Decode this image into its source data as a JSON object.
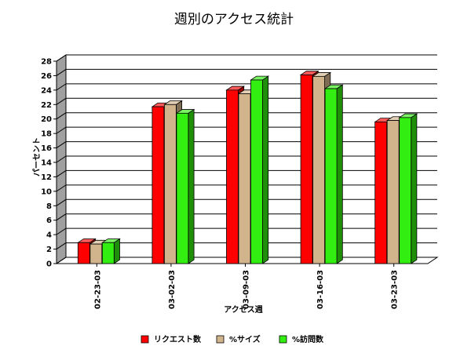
{
  "chart_data": {
    "type": "bar",
    "title": "週別のアクセス統計",
    "xlabel": "アクセス週",
    "ylabel": "パーセント",
    "categories": [
      "02-23-03",
      "03-02-03",
      "03-09-03",
      "03-16-03",
      "03-23-03"
    ],
    "series": [
      {
        "name": "リクエスト数",
        "values": [
          2.9,
          21.7,
          24.0,
          26.1,
          19.6
        ],
        "color": "#ff0000"
      },
      {
        "name": "%サイズ",
        "values": [
          2.7,
          22.0,
          23.5,
          25.9,
          19.8
        ],
        "color": "#d2b48c"
      },
      {
        "name": "%訪問数",
        "values": [
          2.9,
          20.8,
          25.4,
          24.2,
          20.2
        ],
        "color": "#33ee11"
      }
    ],
    "ylim": [
      0,
      28
    ],
    "yticks": [
      0,
      2,
      4,
      6,
      8,
      10,
      12,
      14,
      16,
      18,
      20,
      22,
      24,
      26,
      28
    ],
    "grid": true,
    "legend_position": "bottom",
    "style": "3d"
  }
}
